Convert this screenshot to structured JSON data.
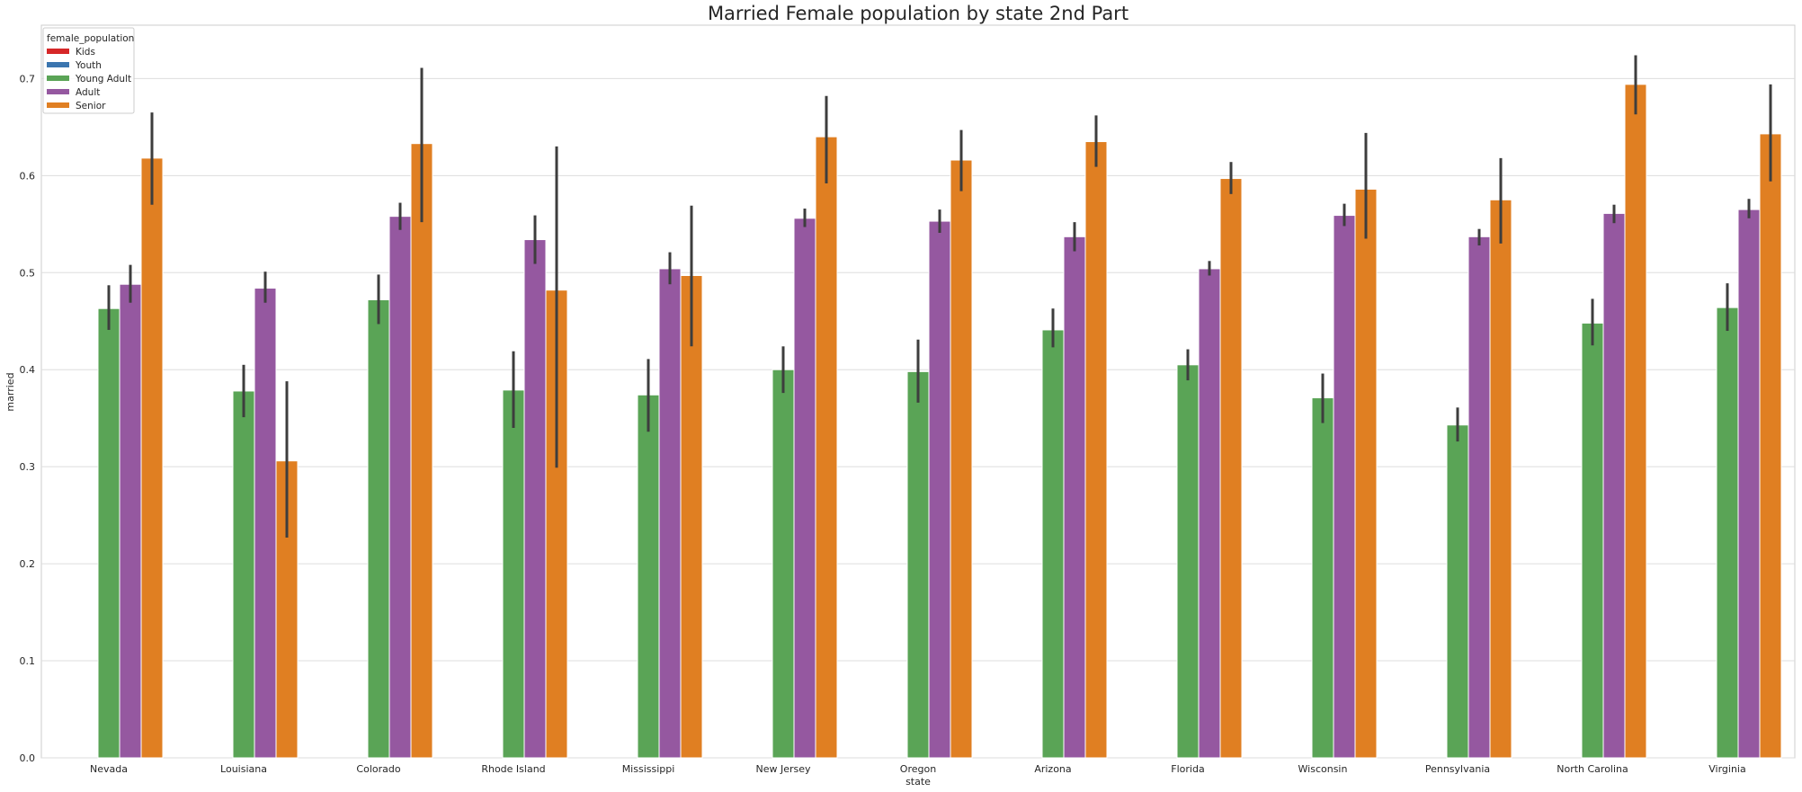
{
  "chart_data": {
    "type": "bar",
    "title": "Married Female population by state 2nd Part",
    "xlabel": "state",
    "ylabel": "married",
    "ylim": [
      0,
      0.755
    ],
    "yticks": [
      "0.0",
      "0.1",
      "0.2",
      "0.3",
      "0.4",
      "0.5",
      "0.6",
      "0.7"
    ],
    "grid": "horizontal",
    "legend": {
      "title": "female_population",
      "placement": "top-left",
      "entries": [
        "Kids",
        "Youth",
        "Young Adult",
        "Adult",
        "Senior"
      ]
    },
    "categories": [
      "Nevada",
      "Louisiana",
      "Colorado",
      "Rhode Island",
      "Mississippi",
      "New Jersey",
      "Oregon",
      "Arizona",
      "Florida",
      "Wisconsin",
      "Pennsylvania",
      "North Carolina",
      "Virginia"
    ],
    "series": [
      {
        "name": "Kids",
        "color": "#d62728",
        "values": [
          null,
          null,
          null,
          null,
          null,
          null,
          null,
          null,
          null,
          null,
          null,
          null,
          null
        ],
        "err_low": [],
        "err_high": []
      },
      {
        "name": "Youth",
        "color": "#3b75af",
        "values": [
          null,
          null,
          null,
          null,
          null,
          null,
          null,
          null,
          null,
          null,
          null,
          null,
          null
        ],
        "err_low": [],
        "err_high": []
      },
      {
        "name": "Young Adult",
        "color": "#5aa456",
        "values": [
          0.463,
          0.378,
          0.472,
          0.379,
          0.374,
          0.4,
          0.398,
          0.441,
          0.405,
          0.371,
          0.343,
          0.448,
          0.464
        ],
        "err_low": [
          0.441,
          0.351,
          0.447,
          0.34,
          0.336,
          0.376,
          0.366,
          0.423,
          0.389,
          0.345,
          0.326,
          0.425,
          0.44
        ],
        "err_high": [
          0.487,
          0.405,
          0.498,
          0.419,
          0.411,
          0.424,
          0.431,
          0.463,
          0.421,
          0.396,
          0.361,
          0.473,
          0.489
        ]
      },
      {
        "name": "Adult",
        "color": "#9558a0",
        "values": [
          0.488,
          0.484,
          0.558,
          0.534,
          0.504,
          0.556,
          0.553,
          0.537,
          0.504,
          0.559,
          0.537,
          0.561,
          0.565
        ],
        "err_low": [
          0.469,
          0.469,
          0.544,
          0.509,
          0.488,
          0.547,
          0.541,
          0.522,
          0.497,
          0.548,
          0.528,
          0.551,
          0.556
        ],
        "err_high": [
          0.508,
          0.501,
          0.572,
          0.559,
          0.521,
          0.566,
          0.565,
          0.552,
          0.512,
          0.571,
          0.545,
          0.57,
          0.576
        ]
      },
      {
        "name": "Senior",
        "color": "#e07f22",
        "values": [
          0.618,
          0.306,
          0.633,
          0.482,
          0.497,
          0.64,
          0.616,
          0.635,
          0.597,
          0.586,
          0.575,
          0.694,
          0.643
        ],
        "err_low": [
          0.57,
          0.227,
          0.552,
          0.299,
          0.424,
          0.592,
          0.584,
          0.609,
          0.581,
          0.535,
          0.53,
          0.663,
          0.594
        ],
        "err_high": [
          0.665,
          0.388,
          0.711,
          0.63,
          0.569,
          0.682,
          0.647,
          0.662,
          0.614,
          0.644,
          0.618,
          0.724,
          0.694
        ]
      }
    ]
  }
}
